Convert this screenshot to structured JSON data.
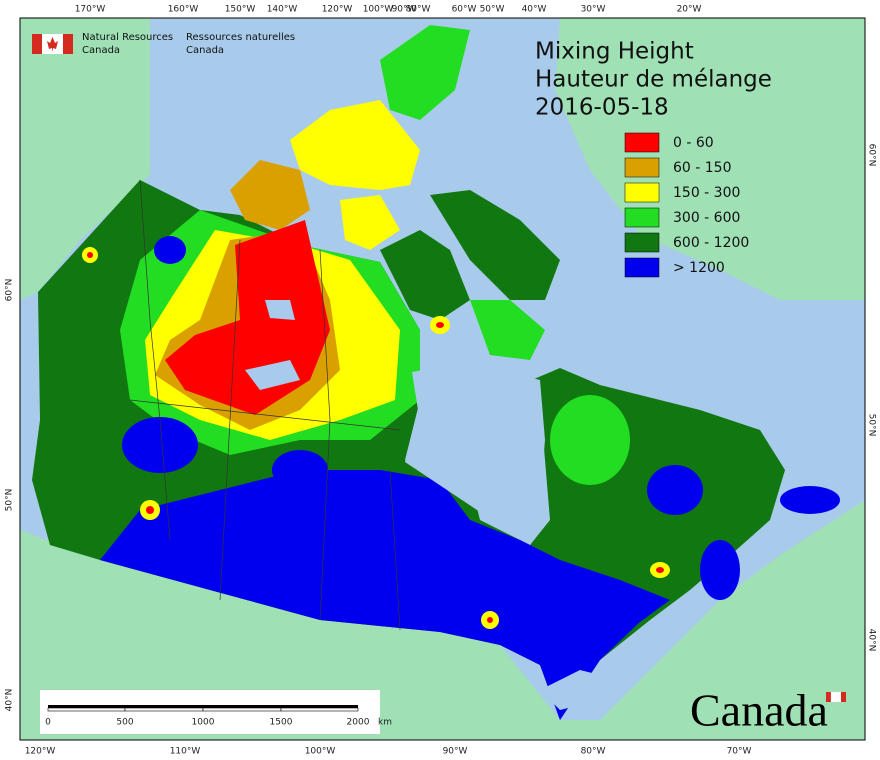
{
  "header": {
    "agency_en": [
      "Natural Resources",
      "Canada"
    ],
    "agency_fr": [
      "Ressources naturelles",
      "Canada"
    ]
  },
  "title": [
    "Mixing Height",
    "Hauteur de mélange",
    "2016-05-18"
  ],
  "legend": [
    {
      "label": "0 - 60",
      "color": "#ff0000"
    },
    {
      "label": "60 - 150",
      "color": "#d9a000"
    },
    {
      "label": "150 - 300",
      "color": "#ffff00"
    },
    {
      "label": "300 - 600",
      "color": "#22dd22"
    },
    {
      "label": "600 - 1200",
      "color": "#117711"
    },
    {
      "label": "> 1200",
      "color": "#0000ee"
    }
  ],
  "graticule": {
    "top": [
      "170°W",
      "160°W",
      "150°W",
      "140°W",
      "120°W",
      "100°W",
      "90°W",
      "80°W",
      "60°W",
      "50°W",
      "40°W",
      "30°W",
      "20°W"
    ],
    "bottom": [
      "120°W",
      "110°W",
      "100°W",
      "90°W",
      "80°W",
      "70°W"
    ],
    "left": [
      "60°N",
      "50°N",
      "40°N"
    ],
    "right": [
      "60°N",
      "50°N",
      "40°N"
    ]
  },
  "scale_bar": {
    "labels": [
      "0",
      "500",
      "1000",
      "1500",
      "2000"
    ],
    "unit": "km"
  },
  "wordmark": "Canada"
}
